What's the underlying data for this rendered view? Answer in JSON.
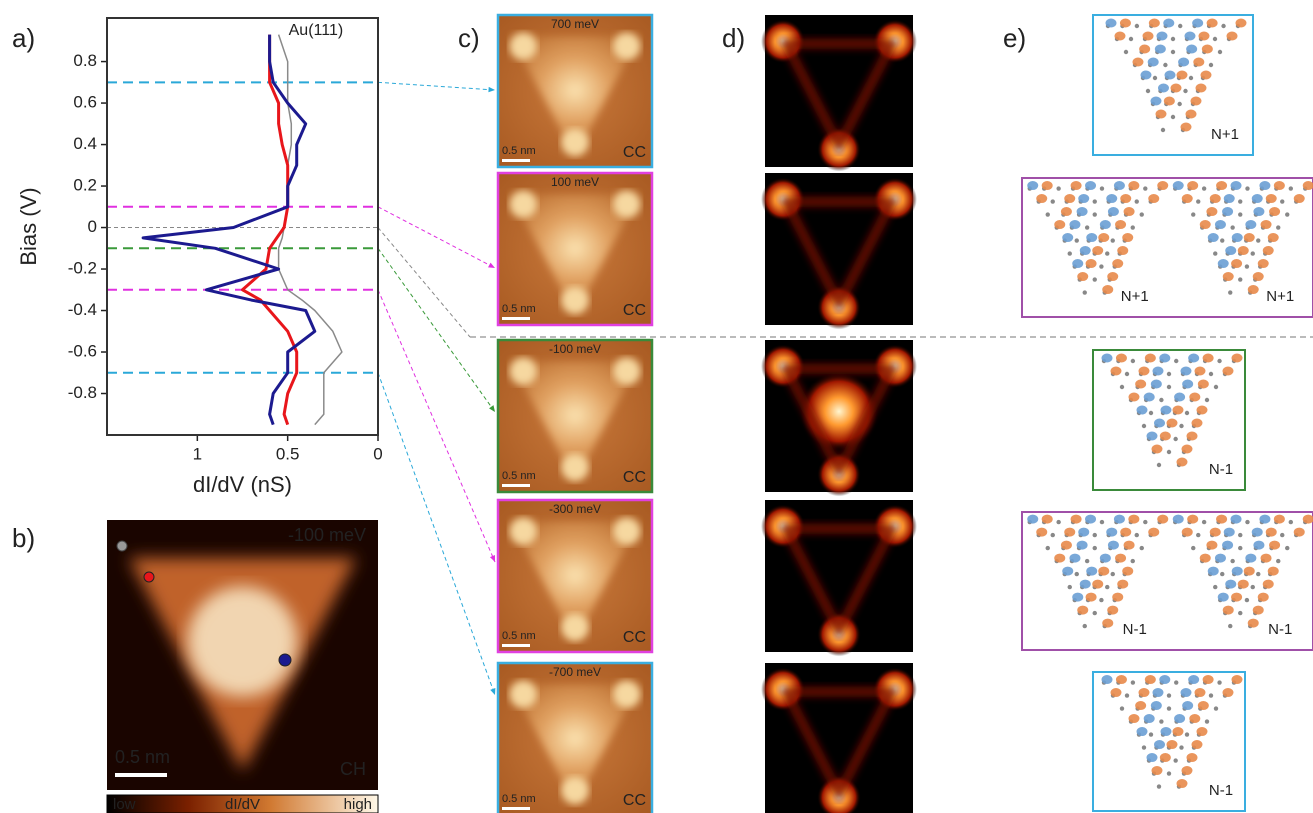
{
  "chart_data": {
    "type": "line",
    "xlabel": "dI/dV (nS)",
    "ylabel": "Bias (V)",
    "xlim": [
      1.5,
      0
    ],
    "ylim": [
      -1.0,
      1.01
    ],
    "xticks": [
      1,
      0.5,
      0
    ],
    "yticks": [
      0.8,
      0.6,
      0.4,
      0.2,
      0,
      -0.2,
      -0.4,
      -0.6,
      -0.8
    ],
    "y": [
      0.93,
      0.8,
      0.7,
      0.6,
      0.5,
      0.4,
      0.3,
      0.2,
      0.1,
      0,
      -0.05,
      -0.1,
      -0.2,
      -0.3,
      -0.35,
      -0.4,
      -0.5,
      -0.6,
      -0.7,
      -0.8,
      -0.9,
      -0.95
    ],
    "series": [
      {
        "name": "Au(111)",
        "color": "#8a8a8a",
        "values": [
          0.55,
          0.5,
          0.5,
          0.5,
          0.48,
          0.48,
          0.5,
          0.5,
          0.5,
          0.52,
          0.53,
          0.55,
          0.55,
          0.5,
          0.42,
          0.35,
          0.25,
          0.2,
          0.3,
          0.3,
          0.3,
          0.35
        ]
      },
      {
        "color": "#e8161b",
        "values": [
          0.6,
          0.6,
          0.6,
          0.55,
          0.55,
          0.53,
          0.5,
          0.5,
          0.5,
          0.52,
          0.56,
          0.6,
          0.62,
          0.75,
          0.65,
          0.6,
          0.5,
          0.45,
          0.45,
          0.5,
          0.52,
          0.5
        ]
      },
      {
        "color": "#1c1a8f",
        "values": [
          0.6,
          0.6,
          0.58,
          0.5,
          0.4,
          0.45,
          0.45,
          0.5,
          0.5,
          0.8,
          1.3,
          0.9,
          0.55,
          0.95,
          0.7,
          0.4,
          0.35,
          0.5,
          0.5,
          0.58,
          0.6,
          0.58
        ]
      }
    ],
    "hlines": [
      {
        "value": 0.7,
        "color": "#2aa8d8"
      },
      {
        "value": 0.1,
        "color": "#e030e0"
      },
      {
        "value": 0,
        "color": "#888888"
      },
      {
        "value": -0.1,
        "color": "#3a9a3a"
      },
      {
        "value": -0.3,
        "color": "#e030e0"
      },
      {
        "value": -0.7,
        "color": "#2aa8d8"
      }
    ]
  },
  "panels": {
    "labels": [
      "a)",
      "b)",
      "c)",
      "d)",
      "e)"
    ],
    "b": {
      "energy": "-100 meV",
      "scale": "0.5 nm",
      "mode": "CH",
      "colorbar": [
        "low",
        "dI/dV",
        "high"
      ]
    },
    "c": [
      {
        "energy": "700 meV",
        "scale": "0.5 nm",
        "mode": "CC",
        "color": "#3aaee0"
      },
      {
        "energy": "100 meV",
        "scale": "0.5 nm",
        "mode": "CC",
        "color": "#e040e0"
      },
      {
        "energy": "-100 meV",
        "scale": "0.5 nm",
        "mode": "CC",
        "color": "#3a8a3a"
      },
      {
        "energy": "-300 meV",
        "scale": "0.5 nm",
        "mode": "CC",
        "color": "#e040e0"
      },
      {
        "energy": "-700 meV",
        "scale": "0.5 nm",
        "mode": "CC",
        "color": "#3aaee0"
      }
    ],
    "e": [
      {
        "labels": [
          "N+1"
        ],
        "color": "#3aaee0"
      },
      {
        "labels": [
          "N+1",
          "N+1"
        ],
        "color": "#a050a8"
      },
      {
        "labels": [
          "N-1"
        ],
        "color": "#3a8a3a"
      },
      {
        "labels": [
          "N-1",
          "N-1"
        ],
        "color": "#a050a8"
      },
      {
        "labels": [
          "N-1"
        ],
        "color": "#3aaee0"
      }
    ]
  }
}
